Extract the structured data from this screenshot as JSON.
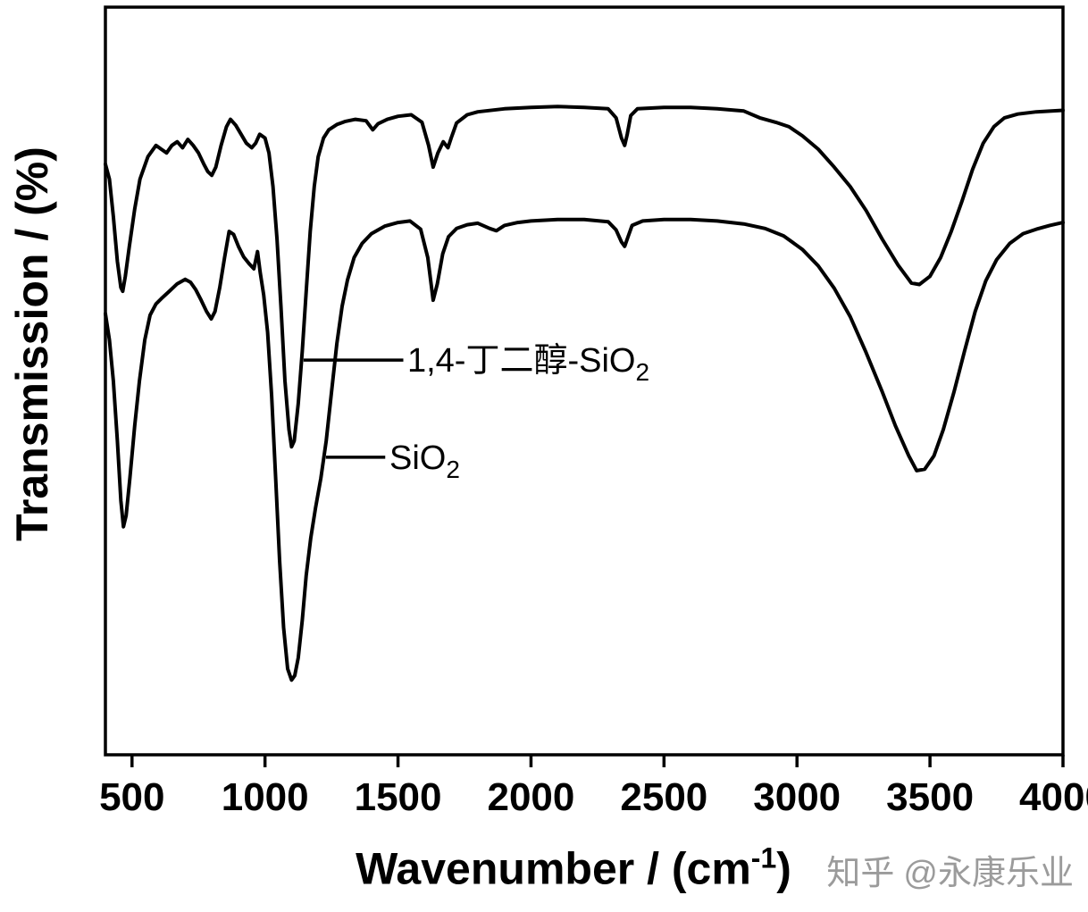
{
  "figure": {
    "background": "#ffffff",
    "watermark": {
      "brand": "知乎",
      "handle": "@永康乐业",
      "color": "#9b9b9b"
    }
  },
  "labels": {
    "ylabel": "Transmission / (%)",
    "xlabel_base": "Wavenumber / (cm",
    "xlabel_sup": "-1",
    "xlabel_close": ")"
  },
  "chart_data": {
    "type": "line",
    "title": "",
    "xlabel": "Wavenumber / (cm^-1)",
    "ylabel": "Transmission / (%)",
    "xlim": [
      400,
      4000
    ],
    "ylim": [
      0,
      100
    ],
    "x_ticks": [
      500,
      1000,
      1500,
      2000,
      2500,
      3000,
      3500,
      4000
    ],
    "y_ticks": [],
    "grid": false,
    "legend_position": "none",
    "line_color": "#000000",
    "series": [
      {
        "id": "butanediol-sio2",
        "name": "1,4-丁二醇-SiO2",
        "points": [
          [
            400,
            79
          ],
          [
            415,
            77
          ],
          [
            430,
            72
          ],
          [
            445,
            66
          ],
          [
            458,
            62.5
          ],
          [
            465,
            62
          ],
          [
            475,
            64
          ],
          [
            490,
            68
          ],
          [
            510,
            73
          ],
          [
            530,
            77
          ],
          [
            560,
            80
          ],
          [
            590,
            81.5
          ],
          [
            610,
            81
          ],
          [
            630,
            80.5
          ],
          [
            650,
            81.5
          ],
          [
            670,
            82
          ],
          [
            690,
            81.2
          ],
          [
            710,
            82.3
          ],
          [
            730,
            81.5
          ],
          [
            750,
            80.5
          ],
          [
            770,
            79
          ],
          [
            785,
            78
          ],
          [
            800,
            77.5
          ],
          [
            815,
            78.6
          ],
          [
            835,
            81.5
          ],
          [
            855,
            84
          ],
          [
            870,
            85
          ],
          [
            890,
            84.2
          ],
          [
            910,
            83
          ],
          [
            930,
            81.8
          ],
          [
            950,
            81.2
          ],
          [
            965,
            81.8
          ],
          [
            980,
            83
          ],
          [
            1000,
            82.5
          ],
          [
            1015,
            80.5
          ],
          [
            1030,
            76
          ],
          [
            1045,
            69
          ],
          [
            1060,
            60
          ],
          [
            1075,
            50
          ],
          [
            1090,
            43.5
          ],
          [
            1100,
            41.2
          ],
          [
            1110,
            42
          ],
          [
            1125,
            47
          ],
          [
            1140,
            54
          ],
          [
            1155,
            62
          ],
          [
            1170,
            70
          ],
          [
            1185,
            76
          ],
          [
            1200,
            80
          ],
          [
            1220,
            82.5
          ],
          [
            1240,
            83.6
          ],
          [
            1270,
            84.3
          ],
          [
            1300,
            84.7
          ],
          [
            1340,
            85
          ],
          [
            1380,
            84.8
          ],
          [
            1405,
            83.6
          ],
          [
            1425,
            84.4
          ],
          [
            1460,
            85
          ],
          [
            1500,
            85.4
          ],
          [
            1550,
            85.6
          ],
          [
            1590,
            84.6
          ],
          [
            1615,
            81.5
          ],
          [
            1632,
            78.6
          ],
          [
            1650,
            80.5
          ],
          [
            1670,
            82
          ],
          [
            1688,
            81.2
          ],
          [
            1700,
            82.5
          ],
          [
            1720,
            84.5
          ],
          [
            1760,
            85.6
          ],
          [
            1800,
            86
          ],
          [
            1900,
            86.4
          ],
          [
            2000,
            86.6
          ],
          [
            2100,
            86.7
          ],
          [
            2200,
            86.6
          ],
          [
            2290,
            86.4
          ],
          [
            2320,
            85.2
          ],
          [
            2340,
            82.5
          ],
          [
            2352,
            81.5
          ],
          [
            2362,
            83
          ],
          [
            2375,
            85.5
          ],
          [
            2400,
            86.4
          ],
          [
            2500,
            86.6
          ],
          [
            2600,
            86.6
          ],
          [
            2700,
            86.4
          ],
          [
            2800,
            86.1
          ],
          [
            2860,
            85.2
          ],
          [
            2920,
            84.6
          ],
          [
            2970,
            84
          ],
          [
            3020,
            82.8
          ],
          [
            3080,
            81
          ],
          [
            3140,
            78.6
          ],
          [
            3200,
            76
          ],
          [
            3260,
            72.8
          ],
          [
            3320,
            69
          ],
          [
            3380,
            65.5
          ],
          [
            3430,
            63.1
          ],
          [
            3460,
            62.9
          ],
          [
            3500,
            64
          ],
          [
            3540,
            66.5
          ],
          [
            3580,
            70
          ],
          [
            3620,
            74
          ],
          [
            3660,
            78.3
          ],
          [
            3700,
            81.8
          ],
          [
            3740,
            84
          ],
          [
            3780,
            85.2
          ],
          [
            3830,
            85.7
          ],
          [
            3900,
            86
          ],
          [
            4000,
            86.2
          ]
        ]
      },
      {
        "id": "sio2",
        "name": "SiO2",
        "points": [
          [
            400,
            59
          ],
          [
            415,
            55.5
          ],
          [
            430,
            50
          ],
          [
            445,
            42
          ],
          [
            458,
            34
          ],
          [
            468,
            30.5
          ],
          [
            478,
            32
          ],
          [
            492,
            37
          ],
          [
            510,
            44
          ],
          [
            528,
            50
          ],
          [
            548,
            55.5
          ],
          [
            568,
            58.8
          ],
          [
            590,
            60.3
          ],
          [
            610,
            61
          ],
          [
            640,
            62
          ],
          [
            670,
            63
          ],
          [
            700,
            63.6
          ],
          [
            720,
            63.2
          ],
          [
            740,
            62.2
          ],
          [
            760,
            60.8
          ],
          [
            780,
            59.3
          ],
          [
            798,
            58.3
          ],
          [
            812,
            59.3
          ],
          [
            830,
            62.5
          ],
          [
            848,
            66.5
          ],
          [
            865,
            70
          ],
          [
            882,
            69.6
          ],
          [
            900,
            68
          ],
          [
            920,
            66.6
          ],
          [
            940,
            65.7
          ],
          [
            958,
            65
          ],
          [
            972,
            67.3
          ],
          [
            982,
            64.5
          ],
          [
            995,
            61.5
          ],
          [
            1010,
            56.5
          ],
          [
            1025,
            48
          ],
          [
            1040,
            37
          ],
          [
            1055,
            26
          ],
          [
            1070,
            17
          ],
          [
            1085,
            11.5
          ],
          [
            1100,
            10
          ],
          [
            1112,
            10.6
          ],
          [
            1125,
            13
          ],
          [
            1140,
            18
          ],
          [
            1155,
            24
          ],
          [
            1172,
            29
          ],
          [
            1190,
            33
          ],
          [
            1210,
            37
          ],
          [
            1230,
            42
          ],
          [
            1250,
            48.5
          ],
          [
            1270,
            55
          ],
          [
            1290,
            60
          ],
          [
            1310,
            63.5
          ],
          [
            1335,
            66.5
          ],
          [
            1365,
            68.4
          ],
          [
            1400,
            69.7
          ],
          [
            1450,
            70.7
          ],
          [
            1500,
            71.2
          ],
          [
            1545,
            71.4
          ],
          [
            1585,
            70.3
          ],
          [
            1612,
            66.5
          ],
          [
            1632,
            60.8
          ],
          [
            1648,
            63
          ],
          [
            1668,
            67
          ],
          [
            1690,
            69.3
          ],
          [
            1720,
            70.4
          ],
          [
            1760,
            70.9
          ],
          [
            1800,
            71.1
          ],
          [
            1845,
            70.4
          ],
          [
            1870,
            70.1
          ],
          [
            1900,
            70.8
          ],
          [
            1950,
            71.2
          ],
          [
            2000,
            71.4
          ],
          [
            2100,
            71.6
          ],
          [
            2200,
            71.6
          ],
          [
            2290,
            71.3
          ],
          [
            2320,
            70.2
          ],
          [
            2340,
            68.6
          ],
          [
            2352,
            68
          ],
          [
            2365,
            69.3
          ],
          [
            2380,
            70.8
          ],
          [
            2420,
            71.4
          ],
          [
            2500,
            71.6
          ],
          [
            2600,
            71.6
          ],
          [
            2700,
            71.4
          ],
          [
            2800,
            71
          ],
          [
            2880,
            70.4
          ],
          [
            2950,
            69.4
          ],
          [
            3020,
            67.6
          ],
          [
            3080,
            65.4
          ],
          [
            3140,
            62.4
          ],
          [
            3200,
            58.6
          ],
          [
            3260,
            53.8
          ],
          [
            3320,
            48.6
          ],
          [
            3370,
            44
          ],
          [
            3420,
            40
          ],
          [
            3450,
            38
          ],
          [
            3480,
            38.2
          ],
          [
            3515,
            40
          ],
          [
            3550,
            43.5
          ],
          [
            3590,
            48.5
          ],
          [
            3630,
            54
          ],
          [
            3670,
            59.3
          ],
          [
            3710,
            63.4
          ],
          [
            3750,
            66.2
          ],
          [
            3800,
            68.4
          ],
          [
            3850,
            69.7
          ],
          [
            3900,
            70.3
          ],
          [
            3950,
            70.8
          ],
          [
            4000,
            71.2
          ]
        ]
      }
    ],
    "annotations": [
      {
        "id": "annotation-butanediol-sio2",
        "text_base": "1,4-丁二醇-SiO",
        "text_sub": "2",
        "leader": {
          "x1": 1145,
          "x2": 1520,
          "y": 52.8
        },
        "text_x": 1535,
        "text_y": 52.8
      },
      {
        "id": "annotation-sio2",
        "text_base": "SiO",
        "text_sub": "2",
        "leader": {
          "x1": 1229,
          "x2": 1452,
          "y": 39.8
        },
        "text_x": 1468,
        "text_y": 39.8
      }
    ]
  }
}
